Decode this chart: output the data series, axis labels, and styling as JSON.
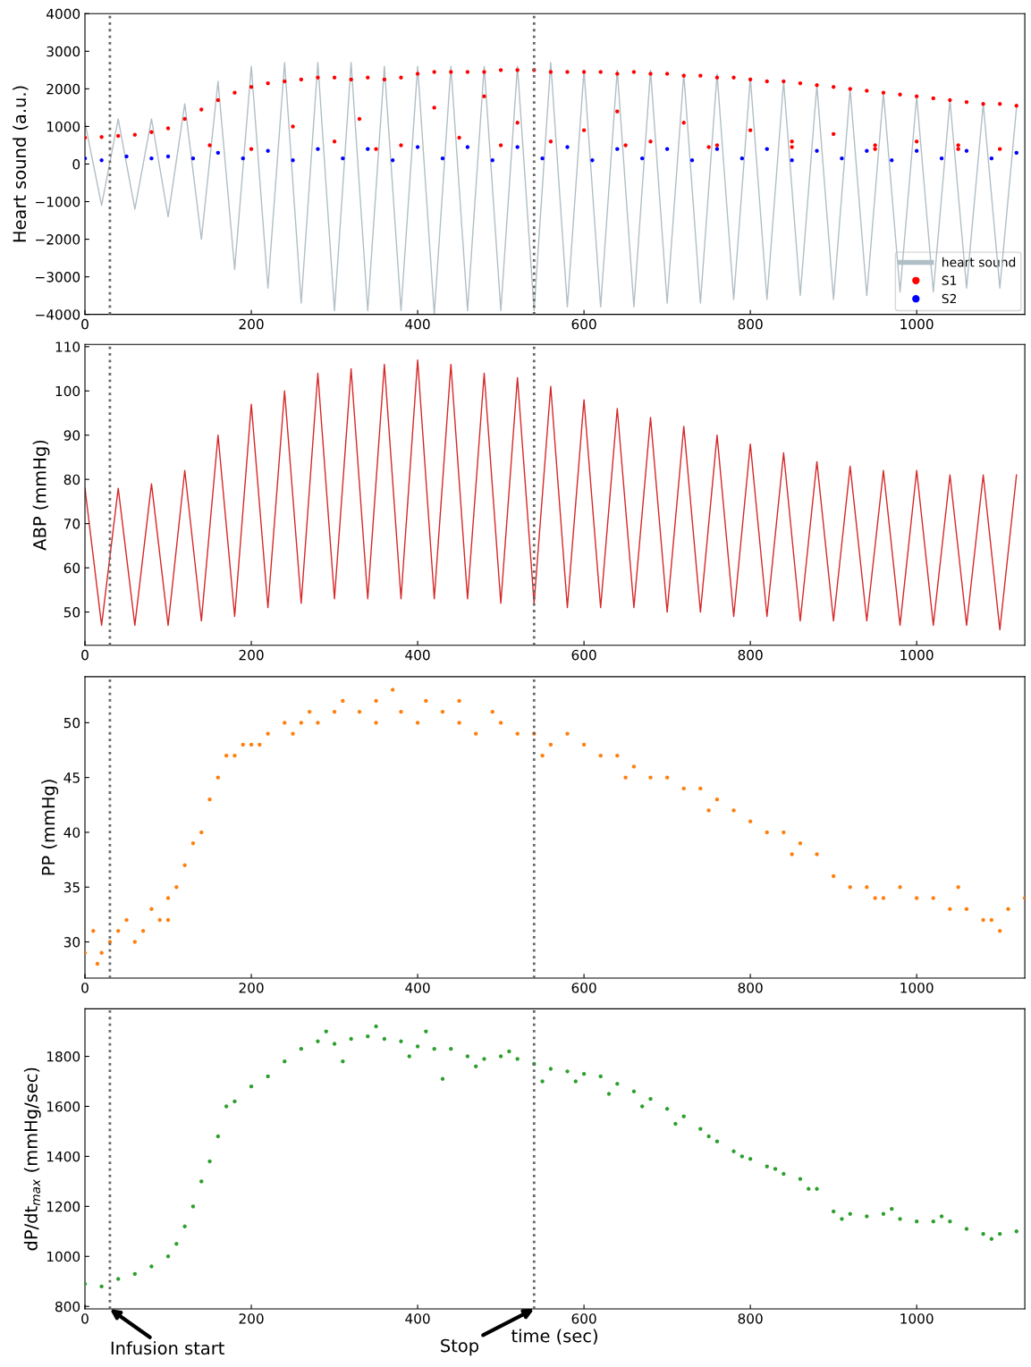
{
  "chart_data": [
    {
      "type": "line",
      "ylabel": "Heart sound (a.u.)",
      "xlim": [
        0,
        1130
      ],
      "xticks": [
        0,
        200,
        400,
        600,
        800,
        1000
      ],
      "ylim": [
        -4000,
        4000
      ],
      "yticks": [
        {
          "value": -4000,
          "label": "−4000"
        },
        {
          "value": -3000,
          "label": "−3000"
        },
        {
          "value": -2000,
          "label": "−2000"
        },
        {
          "value": -1000,
          "label": "−1000"
        },
        0,
        1000,
        2000,
        3000,
        4000
      ],
      "legend": "bottom right",
      "grid": false,
      "ref_lines": [
        {
          "axis": "x",
          "value": 30,
          "color": "#666666",
          "line_style": "dotted"
        },
        {
          "axis": "x",
          "value": 540,
          "color": "#666666",
          "line_style": "dotted"
        }
      ],
      "series": [
        {
          "name": "heart sound",
          "color": "#b0bec5",
          "line_style": "solid",
          "marker": "none",
          "x": [
            0,
            20,
            40,
            60,
            80,
            100,
            120,
            140,
            160,
            180,
            200,
            220,
            240,
            260,
            280,
            300,
            320,
            340,
            360,
            380,
            400,
            420,
            440,
            460,
            480,
            500,
            520,
            540,
            560,
            580,
            600,
            620,
            640,
            660,
            680,
            700,
            720,
            740,
            760,
            780,
            800,
            820,
            840,
            860,
            880,
            900,
            920,
            940,
            960,
            980,
            1000,
            1020,
            1040,
            1060,
            1080,
            1100,
            1120
          ],
          "values": [
            1100,
            -1100,
            1200,
            -1200,
            1200,
            -1400,
            1600,
            -2000,
            2200,
            -2800,
            2600,
            -3300,
            2700,
            -3700,
            2700,
            -3900,
            2700,
            -3900,
            2600,
            -3900,
            2600,
            -4000,
            2600,
            -3900,
            2600,
            -3900,
            2600,
            -3900,
            2700,
            -3800,
            2500,
            -3800,
            2500,
            -3800,
            2500,
            -3700,
            2400,
            -3700,
            2400,
            -3600,
            2300,
            -3600,
            2200,
            -3500,
            2100,
            -3600,
            2000,
            -3500,
            1900,
            -3400,
            1800,
            -3400,
            1700,
            -3300,
            1600,
            -3300,
            1500
          ]
        },
        {
          "name": "S1",
          "type": "scatter",
          "color": "#ff0000",
          "marker": "circle",
          "x": [
            0,
            20,
            40,
            60,
            80,
            100,
            120,
            140,
            160,
            180,
            200,
            220,
            240,
            260,
            280,
            300,
            320,
            340,
            360,
            380,
            400,
            420,
            440,
            460,
            480,
            500,
            520,
            540,
            560,
            580,
            600,
            620,
            640,
            660,
            680,
            700,
            720,
            740,
            760,
            780,
            800,
            820,
            840,
            860,
            880,
            900,
            920,
            940,
            960,
            980,
            1000,
            1020,
            1040,
            1060,
            1080,
            1100,
            1120,
            150,
            250,
            300,
            330,
            380,
            420,
            450,
            480,
            520,
            560,
            600,
            640,
            680,
            720,
            760,
            800,
            850,
            900,
            950,
            1000,
            1050,
            1100,
            200,
            350,
            500,
            650,
            750,
            850,
            950,
            1050
          ],
          "values": [
            700,
            720,
            750,
            780,
            850,
            950,
            1200,
            1450,
            1700,
            1900,
            2050,
            2150,
            2200,
            2250,
            2300,
            2300,
            2250,
            2300,
            2250,
            2300,
            2400,
            2450,
            2450,
            2450,
            2450,
            2500,
            2500,
            2500,
            2450,
            2450,
            2450,
            2450,
            2400,
            2450,
            2400,
            2400,
            2350,
            2350,
            2300,
            2300,
            2250,
            2200,
            2200,
            2150,
            2100,
            2050,
            2000,
            1950,
            1900,
            1850,
            1800,
            1750,
            1700,
            1650,
            1600,
            1600,
            1550,
            500,
            1000,
            600,
            1200,
            500,
            1500,
            700,
            1800,
            1100,
            600,
            900,
            1400,
            600,
            1100,
            500,
            900,
            600,
            800,
            500,
            600,
            500,
            400,
            400,
            400,
            500,
            500,
            450,
            450,
            400,
            400
          ]
        },
        {
          "name": "S2",
          "type": "scatter",
          "color": "#0000ff",
          "marker": "circle",
          "x": [
            0,
            20,
            50,
            80,
            100,
            130,
            160,
            190,
            220,
            250,
            280,
            310,
            340,
            370,
            400,
            430,
            460,
            490,
            520,
            550,
            580,
            610,
            640,
            670,
            700,
            730,
            760,
            790,
            820,
            850,
            880,
            910,
            940,
            970,
            1000,
            1030,
            1060,
            1090,
            1120
          ],
          "values": [
            150,
            100,
            200,
            150,
            200,
            150,
            300,
            150,
            350,
            100,
            400,
            150,
            400,
            100,
            450,
            150,
            450,
            100,
            450,
            150,
            450,
            100,
            400,
            150,
            400,
            100,
            400,
            150,
            400,
            100,
            350,
            150,
            350,
            100,
            350,
            150,
            350,
            150,
            300
          ]
        }
      ]
    },
    {
      "type": "line",
      "ylabel": "ABP (mmHg)",
      "xlim": [
        0,
        1130
      ],
      "xticks": [
        0,
        200,
        400,
        600,
        800,
        1000
      ],
      "ylim": [
        42.5,
        110.5
      ],
      "yticks": [
        50,
        60,
        70,
        80,
        90,
        100,
        110
      ],
      "grid": false,
      "ref_lines": [
        {
          "axis": "x",
          "value": 30,
          "color": "#666666",
          "line_style": "dotted"
        },
        {
          "axis": "x",
          "value": 540,
          "color": "#666666",
          "line_style": "dotted"
        }
      ],
      "series": [
        {
          "color": "#d62728",
          "line_style": "solid",
          "marker": "none",
          "x": [
            0,
            20,
            40,
            60,
            80,
            100,
            120,
            140,
            160,
            180,
            200,
            220,
            240,
            260,
            280,
            300,
            320,
            340,
            360,
            380,
            400,
            420,
            440,
            460,
            480,
            500,
            520,
            540,
            560,
            580,
            600,
            620,
            640,
            660,
            680,
            700,
            720,
            740,
            760,
            780,
            800,
            820,
            840,
            860,
            880,
            900,
            920,
            940,
            960,
            980,
            1000,
            1020,
            1040,
            1060,
            1080,
            1100,
            1120
          ],
          "values": [
            78,
            47,
            78,
            47,
            79,
            47,
            82,
            48,
            90,
            49,
            97,
            51,
            100,
            52,
            104,
            53,
            105,
            53,
            106,
            53,
            107,
            53,
            106,
            53,
            104,
            52,
            103,
            52,
            101,
            51,
            98,
            51,
            96,
            51,
            94,
            50,
            92,
            50,
            90,
            49,
            88,
            49,
            86,
            48,
            84,
            48,
            83,
            48,
            82,
            47,
            82,
            47,
            81,
            47,
            81,
            46,
            81
          ]
        }
      ]
    },
    {
      "type": "scatter",
      "ylabel": "PP (mmHg)",
      "xlim": [
        0,
        1130
      ],
      "xticks": [
        0,
        200,
        400,
        600,
        800,
        1000
      ],
      "ylim": [
        26.7,
        54.2
      ],
      "yticks": [
        30,
        35,
        40,
        45,
        50
      ],
      "grid": false,
      "ref_lines": [
        {
          "axis": "x",
          "value": 30,
          "color": "#666666",
          "line_style": "dotted"
        },
        {
          "axis": "x",
          "value": 540,
          "color": "#666666",
          "line_style": "dotted"
        }
      ],
      "series": [
        {
          "color": "#ff7f0e",
          "marker": "circle",
          "x": [
            0,
            10,
            20,
            30,
            40,
            50,
            60,
            70,
            80,
            90,
            100,
            110,
            120,
            130,
            140,
            150,
            160,
            170,
            180,
            190,
            200,
            210,
            220,
            240,
            260,
            270,
            280,
            300,
            310,
            330,
            350,
            370,
            380,
            400,
            410,
            430,
            450,
            470,
            490,
            500,
            520,
            540,
            560,
            580,
            600,
            620,
            640,
            660,
            680,
            700,
            720,
            740,
            760,
            780,
            800,
            820,
            840,
            860,
            880,
            900,
            920,
            940,
            960,
            980,
            1000,
            1020,
            1040,
            1060,
            1080,
            1100,
            1110,
            1130,
            15,
            100,
            250,
            350,
            450,
            550,
            650,
            750,
            850,
            950,
            1050,
            1090
          ],
          "values": [
            29,
            31,
            29,
            30,
            31,
            32,
            30,
            31,
            33,
            32,
            34,
            35,
            37,
            39,
            40,
            43,
            45,
            47,
            47,
            48,
            48,
            48,
            49,
            50,
            50,
            51,
            50,
            51,
            52,
            51,
            52,
            53,
            51,
            50,
            52,
            51,
            50,
            49,
            51,
            50,
            49,
            49,
            48,
            49,
            48,
            47,
            47,
            46,
            45,
            45,
            44,
            44,
            43,
            42,
            41,
            40,
            40,
            39,
            38,
            36,
            35,
            35,
            34,
            35,
            34,
            34,
            33,
            33,
            32,
            31,
            33,
            34,
            28,
            32,
            49,
            50,
            52,
            47,
            45,
            42,
            38,
            34,
            35,
            32
          ]
        }
      ]
    },
    {
      "type": "scatter",
      "ylabel": "dP/dt$_{max}$ (mmHg/sec)",
      "xlabel": "time (sec)",
      "xlim": [
        0,
        1130
      ],
      "xticks": [
        0,
        200,
        400,
        600,
        800,
        1000
      ],
      "ylim": [
        790,
        1990
      ],
      "yticks": [
        800,
        1000,
        1200,
        1400,
        1600,
        1800
      ],
      "grid": false,
      "ref_lines": [
        {
          "axis": "x",
          "value": 30,
          "color": "#666666",
          "line_style": "dotted"
        },
        {
          "axis": "x",
          "value": 540,
          "color": "#666666",
          "line_style": "dotted"
        }
      ],
      "annotations": [
        {
          "text": "Infusion start",
          "x": 30,
          "y": 790
        },
        {
          "text": "Stop",
          "x": 540,
          "y": 790
        }
      ],
      "series": [
        {
          "color": "#2ca02c",
          "marker": "circle",
          "x": [
            0,
            20,
            40,
            60,
            80,
            100,
            110,
            120,
            130,
            140,
            150,
            160,
            170,
            180,
            200,
            220,
            240,
            260,
            280,
            300,
            320,
            340,
            360,
            380,
            400,
            420,
            440,
            460,
            480,
            500,
            520,
            540,
            560,
            580,
            600,
            620,
            640,
            660,
            680,
            700,
            720,
            740,
            760,
            780,
            800,
            820,
            840,
            860,
            880,
            900,
            920,
            940,
            960,
            980,
            1000,
            1020,
            1040,
            1060,
            1080,
            1100,
            1120,
            290,
            310,
            350,
            390,
            410,
            430,
            470,
            510,
            550,
            590,
            630,
            670,
            710,
            750,
            790,
            830,
            870,
            910,
            970,
            1030,
            1090
          ],
          "values": [
            890,
            880,
            910,
            930,
            960,
            1000,
            1050,
            1120,
            1200,
            1300,
            1380,
            1480,
            1600,
            1620,
            1680,
            1720,
            1780,
            1830,
            1860,
            1850,
            1870,
            1880,
            1870,
            1860,
            1840,
            1830,
            1830,
            1800,
            1790,
            1800,
            1790,
            1770,
            1750,
            1740,
            1730,
            1720,
            1690,
            1660,
            1630,
            1590,
            1560,
            1510,
            1460,
            1420,
            1390,
            1360,
            1330,
            1310,
            1270,
            1180,
            1170,
            1160,
            1170,
            1150,
            1140,
            1140,
            1140,
            1110,
            1090,
            1090,
            1100,
            1900,
            1780,
            1920,
            1800,
            1900,
            1710,
            1760,
            1820,
            1700,
            1700,
            1650,
            1600,
            1530,
            1480,
            1400,
            1350,
            1270,
            1150,
            1190,
            1160,
            1070
          ]
        }
      ]
    }
  ]
}
